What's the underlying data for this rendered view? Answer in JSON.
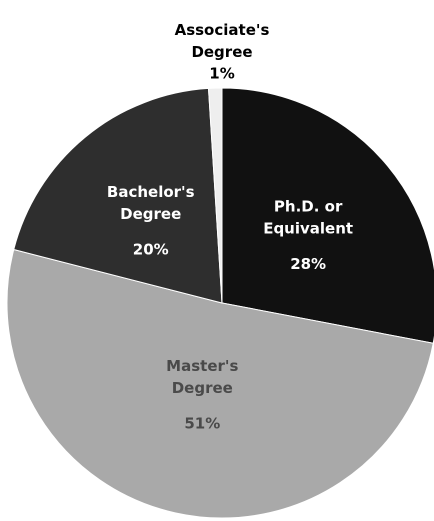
{
  "chart_data": {
    "type": "pie",
    "categories": [
      "Ph.D. or\nEquivalent",
      "Master's\nDegree",
      "Bachelor's\nDegree",
      "Associate's\nDegree"
    ],
    "values": [
      28,
      51,
      20,
      1
    ],
    "value_labels": [
      "28%",
      "51%",
      "20%",
      "1%"
    ],
    "colors": [
      "#111111",
      "#a9a9a9",
      "#2e2e2e",
      "#eeeeee"
    ]
  }
}
